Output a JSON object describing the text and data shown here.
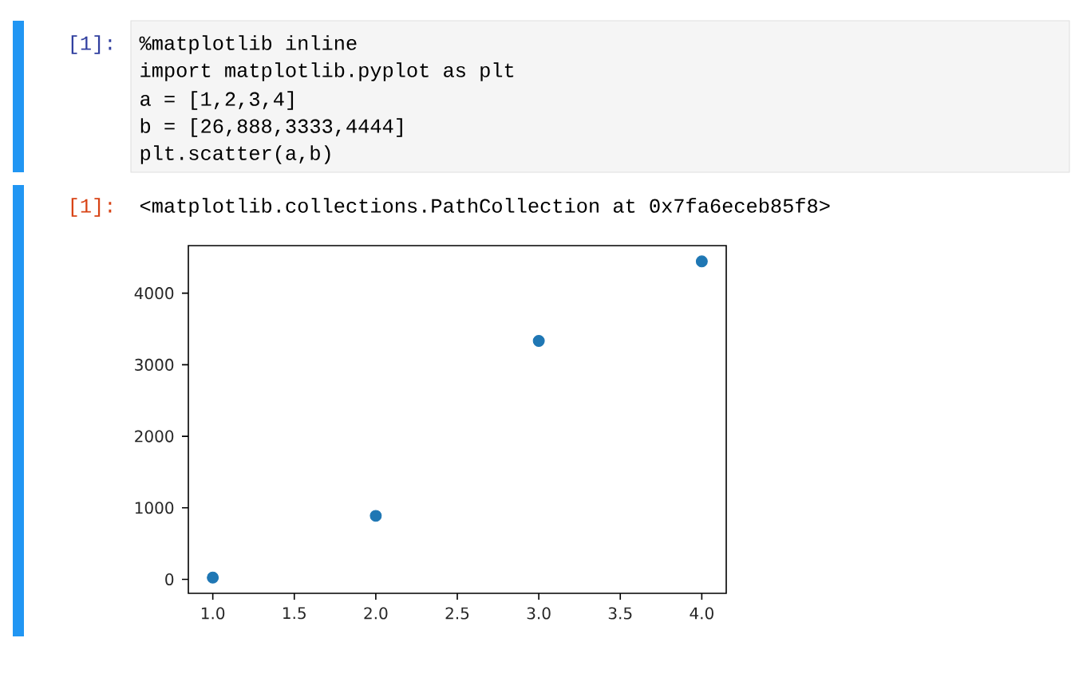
{
  "chart_data": {
    "type": "scatter",
    "x": [
      1,
      2,
      3,
      4
    ],
    "values": [
      26,
      888,
      3333,
      4444
    ],
    "color": "#1f77b4",
    "marker": "circle",
    "xlim": [
      0.85,
      4.15
    ],
    "ylim": [
      -195,
      4665
    ],
    "xticks": [
      {
        "value": 1,
        "label": "1.0"
      },
      {
        "value": 1.5,
        "label": "1.5"
      },
      {
        "value": 2,
        "label": "2.0"
      },
      {
        "value": 2.5,
        "label": "2.5"
      },
      {
        "value": 3,
        "label": "3.0"
      },
      {
        "value": 3.5,
        "label": "3.5"
      },
      {
        "value": 4,
        "label": "4.0"
      }
    ],
    "yticks": [
      0,
      1000,
      2000,
      3000,
      4000
    ],
    "grid": false,
    "annotations": [
      "[1]:",
      "%matplotlib inline",
      "import matplotlib.pyplot as plt",
      "a = [1,2,3,4]",
      "b = [26,888,3333,4444]",
      "plt.scatter(a,b)",
      "[1]:",
      "<matplotlib.collections.PathCollection at 0x7fa6eceb85f8>"
    ]
  }
}
